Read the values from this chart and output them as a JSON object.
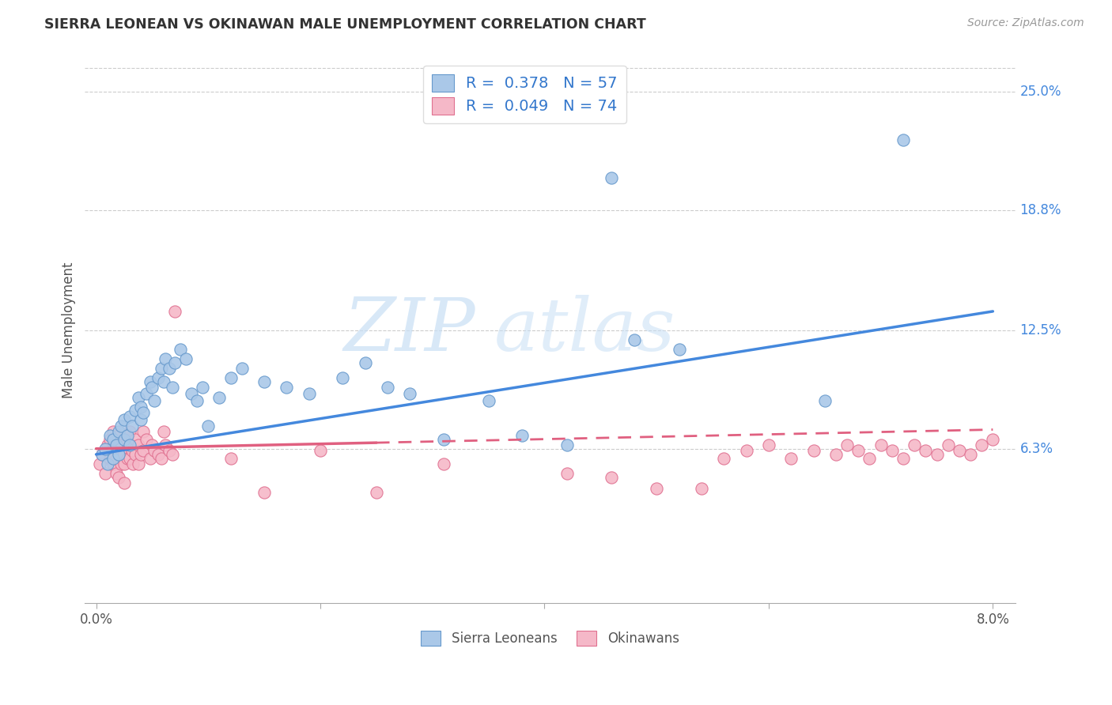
{
  "title": "SIERRA LEONEAN VS OKINAWAN MALE UNEMPLOYMENT CORRELATION CHART",
  "source": "Source: ZipAtlas.com",
  "ylabel": "Male Unemployment",
  "xlim": [
    -0.001,
    0.082
  ],
  "ylim": [
    -0.018,
    0.268
  ],
  "xtick_positions": [
    0.0,
    0.02,
    0.04,
    0.06,
    0.08
  ],
  "xticklabels": [
    "0.0%",
    "",
    "",
    "",
    "8.0%"
  ],
  "ytick_positions": [
    0.063,
    0.125,
    0.188,
    0.25
  ],
  "ytick_labels": [
    "6.3%",
    "12.5%",
    "18.8%",
    "25.0%"
  ],
  "watermark_zip": "ZIP",
  "watermark_atlas": "atlas",
  "sierra_leone_color": "#aac8e8",
  "sierra_leone_edge": "#6699cc",
  "okinawa_color": "#f5b8c8",
  "okinawa_edge": "#e07090",
  "trend_sierra_color": "#4488dd",
  "trend_okinawa_solid_color": "#e06080",
  "trend_okinawa_dash_color": "#e06080",
  "legend_sierra_R": "0.378",
  "legend_sierra_N": "57",
  "legend_okinawa_R": "0.049",
  "legend_okinawa_N": "74",
  "sierra_x": [
    0.0005,
    0.0008,
    0.001,
    0.0012,
    0.0015,
    0.0015,
    0.0018,
    0.002,
    0.002,
    0.0022,
    0.0025,
    0.0025,
    0.0028,
    0.003,
    0.003,
    0.0032,
    0.0035,
    0.0038,
    0.004,
    0.004,
    0.0042,
    0.0045,
    0.0048,
    0.005,
    0.0052,
    0.0055,
    0.0058,
    0.006,
    0.0062,
    0.0065,
    0.0068,
    0.007,
    0.0075,
    0.008,
    0.0085,
    0.009,
    0.0095,
    0.01,
    0.011,
    0.012,
    0.013,
    0.015,
    0.017,
    0.019,
    0.022,
    0.024,
    0.026,
    0.028,
    0.031,
    0.035,
    0.038,
    0.042,
    0.046,
    0.048,
    0.052,
    0.065,
    0.072
  ],
  "sierra_y": [
    0.06,
    0.063,
    0.055,
    0.07,
    0.068,
    0.058,
    0.065,
    0.072,
    0.06,
    0.075,
    0.068,
    0.078,
    0.07,
    0.08,
    0.065,
    0.075,
    0.083,
    0.09,
    0.085,
    0.078,
    0.082,
    0.092,
    0.098,
    0.095,
    0.088,
    0.1,
    0.105,
    0.098,
    0.11,
    0.105,
    0.095,
    0.108,
    0.115,
    0.11,
    0.092,
    0.088,
    0.095,
    0.075,
    0.09,
    0.1,
    0.105,
    0.098,
    0.095,
    0.092,
    0.1,
    0.108,
    0.095,
    0.092,
    0.068,
    0.088,
    0.07,
    0.065,
    0.205,
    0.12,
    0.115,
    0.088,
    0.225
  ],
  "okinawa_x": [
    0.0003,
    0.0005,
    0.0008,
    0.001,
    0.0012,
    0.0012,
    0.0013,
    0.0015,
    0.0015,
    0.0016,
    0.0018,
    0.0018,
    0.002,
    0.002,
    0.0022,
    0.0022,
    0.0023,
    0.0025,
    0.0025,
    0.0025,
    0.0028,
    0.0028,
    0.003,
    0.003,
    0.003,
    0.0032,
    0.0033,
    0.0035,
    0.0035,
    0.0038,
    0.0038,
    0.004,
    0.0042,
    0.0042,
    0.0045,
    0.0048,
    0.005,
    0.0052,
    0.0055,
    0.0058,
    0.006,
    0.0062,
    0.0065,
    0.0068,
    0.007,
    0.012,
    0.015,
    0.02,
    0.025,
    0.031,
    0.042,
    0.046,
    0.05,
    0.054,
    0.056,
    0.058,
    0.06,
    0.062,
    0.064,
    0.066,
    0.067,
    0.068,
    0.069,
    0.07,
    0.071,
    0.072,
    0.073,
    0.074,
    0.075,
    0.076,
    0.077,
    0.078,
    0.079,
    0.08
  ],
  "okinawa_y": [
    0.055,
    0.06,
    0.05,
    0.065,
    0.068,
    0.058,
    0.06,
    0.072,
    0.055,
    0.065,
    0.058,
    0.05,
    0.07,
    0.048,
    0.062,
    0.055,
    0.065,
    0.06,
    0.055,
    0.045,
    0.068,
    0.058,
    0.072,
    0.065,
    0.058,
    0.062,
    0.055,
    0.068,
    0.06,
    0.065,
    0.055,
    0.06,
    0.072,
    0.062,
    0.068,
    0.058,
    0.065,
    0.062,
    0.06,
    0.058,
    0.072,
    0.065,
    0.062,
    0.06,
    0.135,
    0.058,
    0.04,
    0.062,
    0.04,
    0.055,
    0.05,
    0.048,
    0.042,
    0.042,
    0.058,
    0.062,
    0.065,
    0.058,
    0.062,
    0.06,
    0.065,
    0.062,
    0.058,
    0.065,
    0.062,
    0.058,
    0.065,
    0.062,
    0.06,
    0.065,
    0.062,
    0.06,
    0.065,
    0.068
  ],
  "trend_sierra_x0": 0.0,
  "trend_sierra_y0": 0.06,
  "trend_sierra_x1": 0.08,
  "trend_sierra_y1": 0.135,
  "trend_okinawa_x0": 0.0,
  "trend_okinawa_y0": 0.063,
  "trend_okinawa_x1": 0.08,
  "trend_okinawa_y1": 0.073,
  "trend_okinawa_solid_end": 0.025
}
